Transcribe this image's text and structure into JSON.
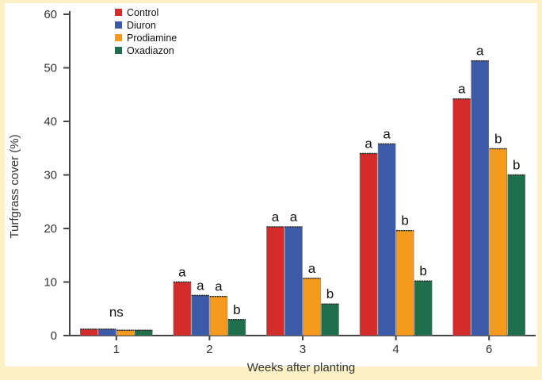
{
  "chart_data": {
    "type": "bar",
    "title": "",
    "xlabel": "Weeks after planting",
    "ylabel": "Turfgrass cover (%)",
    "ylim": [
      0,
      60
    ],
    "yticks": [
      "0",
      "10",
      "20",
      "30",
      "40",
      "50",
      "60"
    ],
    "categories": [
      "1",
      "2",
      "3",
      "4",
      "6"
    ],
    "series": [
      {
        "name": "Control",
        "color": "#d42b2b",
        "values": [
          1.2,
          10,
          20.3,
          34,
          44.2
        ]
      },
      {
        "name": "Diuron",
        "color": "#3c5aa8",
        "values": [
          1.2,
          7.5,
          20.3,
          35.8,
          51.3
        ]
      },
      {
        "name": "Prodiamine",
        "color": "#f59a1c",
        "values": [
          1.0,
          7.3,
          10.7,
          19.6,
          34.9
        ]
      },
      {
        "name": "Oxadiazon",
        "color": "#1f6e4c",
        "values": [
          1.0,
          3.0,
          5.9,
          10.2,
          30.0
        ]
      }
    ],
    "letters": [
      [
        "",
        "",
        "",
        ""
      ],
      [
        "a",
        "a",
        "a",
        "b"
      ],
      [
        "a",
        "a",
        "a",
        "b"
      ],
      [
        "a",
        "a",
        "b",
        "b"
      ],
      [
        "a",
        "a",
        "b",
        "b"
      ]
    ],
    "group_annotations": [
      "ns",
      "",
      "",
      "",
      ""
    ],
    "legend_position": "top-left",
    "grid": false
  },
  "colors": {
    "background": "#fdf0c4",
    "plot_background": "#ffffff",
    "border": "#f6d98a"
  }
}
